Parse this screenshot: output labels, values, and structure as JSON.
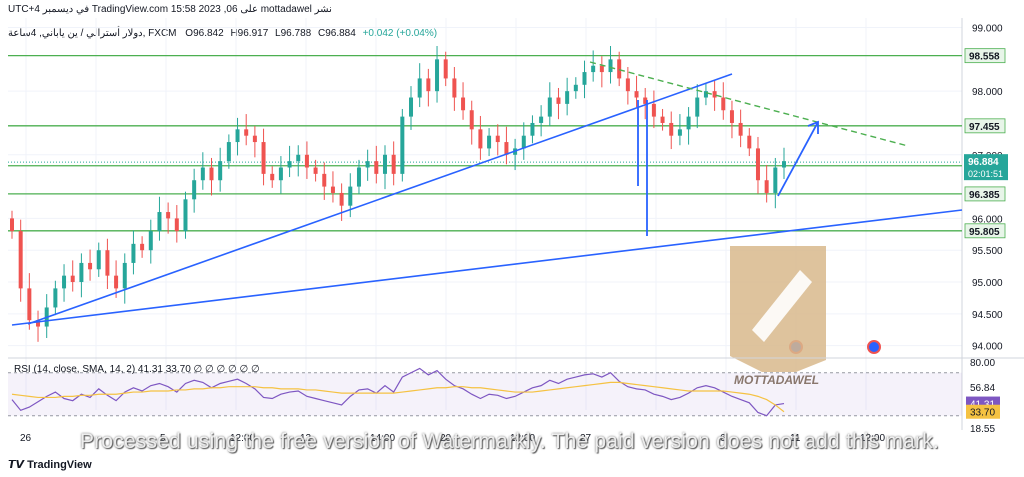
{
  "header": {
    "publish_line": "نشر mottadawel على TradingView.com 15:58 2023 ,06 في ديسمبر UTC+4",
    "symbol_line": "دولار أسترالي / ين ياباني, 4ساعة, FXCM",
    "ohlc": {
      "o": "O96.842",
      "h": "H96.917",
      "l": "L96.788",
      "c": "C96.884",
      "chg": "+0.042 (+0.04%)"
    }
  },
  "watermark_text": "Processed using the free version of Watermarkly. The paid version does not add this mark.",
  "logo_text": "MOTTADAWEL",
  "tv_brand": "TradingView",
  "colors": {
    "up": "#26a69a",
    "down": "#ef5350",
    "level": "#4caf50",
    "trend": "#2962ff",
    "rsi": "#7e57c2",
    "rsi_ma": "#f5c242"
  },
  "chart_data": {
    "type": "candlestick",
    "ylim": [
      93.9,
      99.15
    ],
    "y_ticks": [
      "99.000",
      "98.000",
      "97.000",
      "96.000",
      "95.500",
      "95.000",
      "94.500",
      "94.000"
    ],
    "y_tick_values": [
      99.0,
      98.0,
      97.0,
      96.0,
      95.5,
      95.0,
      94.5,
      94.0
    ],
    "x_labels": [
      "26",
      "",
      "5",
      "12:00",
      "12",
      "14:00",
      "20",
      "12:00",
      "27",
      "",
      "6",
      "11",
      "12:00"
    ],
    "horizontal_levels": [
      {
        "label": "98.558",
        "value": 98.558
      },
      {
        "label": "97.455",
        "value": 97.455
      },
      {
        "label": "96.827",
        "value": 96.827
      },
      {
        "label": "96.385",
        "value": 96.385
      },
      {
        "label": "95.805",
        "value": 95.805
      }
    ],
    "last_price": {
      "label": "96.884",
      "value": 96.884,
      "countdown": "02:01:51"
    },
    "closes": [
      95.8,
      94.9,
      94.4,
      94.3,
      94.6,
      94.9,
      95.1,
      95.0,
      95.3,
      95.2,
      95.5,
      95.1,
      94.9,
      95.3,
      95.6,
      95.5,
      95.8,
      96.1,
      96.0,
      95.8,
      96.3,
      96.6,
      96.8,
      96.6,
      96.9,
      97.2,
      97.4,
      97.3,
      97.2,
      96.7,
      96.6,
      96.8,
      96.9,
      97.0,
      96.8,
      96.7,
      96.5,
      96.4,
      96.2,
      96.5,
      96.8,
      96.9,
      96.7,
      97.0,
      96.7,
      97.6,
      97.9,
      98.2,
      98.0,
      98.5,
      98.2,
      97.9,
      97.7,
      97.4,
      97.1,
      97.3,
      97.2,
      97.0,
      97.1,
      97.3,
      97.5,
      97.6,
      97.9,
      97.8,
      98.0,
      98.1,
      98.3,
      98.4,
      98.3,
      98.5,
      98.2,
      98.0,
      97.9,
      97.8,
      97.6,
      97.5,
      97.3,
      97.4,
      97.6,
      97.9,
      98.0,
      97.9,
      97.7,
      97.5,
      97.3,
      97.1,
      96.6,
      96.4,
      96.8,
      96.9
    ],
    "rsi": {
      "label": "RSI (14, close, SMA, 14, 2)",
      "values_text": "41.31  33.70  ∅ ∅ ∅ ∅ ∅ ∅",
      "ylim": [
        18.55,
        80.0
      ],
      "ticks": [
        "80.00",
        "56.84",
        "41.31",
        "33.70",
        "18.55"
      ],
      "tick_values": [
        80.0,
        56.84,
        41.31,
        33.7,
        18.55
      ],
      "rsi_last": 41.31,
      "ma_last": 33.7,
      "series": [
        45,
        35,
        38,
        43,
        48,
        52,
        46,
        44,
        50,
        47,
        55,
        49,
        44,
        52,
        56,
        53,
        58,
        60,
        57,
        52,
        60,
        63,
        61,
        56,
        60,
        62,
        64,
        60,
        55,
        47,
        46,
        50,
        52,
        53,
        48,
        46,
        44,
        42,
        40,
        48,
        54,
        55,
        51,
        58,
        52,
        66,
        70,
        74,
        68,
        72,
        64,
        58,
        55,
        50,
        46,
        50,
        49,
        46,
        48,
        52,
        56,
        58,
        63,
        60,
        64,
        66,
        68,
        69,
        66,
        70,
        62,
        57,
        55,
        54,
        50,
        48,
        45,
        47,
        51,
        56,
        58,
        56,
        52,
        48,
        45,
        42,
        33,
        30,
        40,
        41.31
      ],
      "ma": [
        50,
        49,
        48,
        47,
        47,
        47,
        48,
        48,
        49,
        49,
        50,
        50,
        50,
        51,
        52,
        52,
        53,
        53,
        53,
        54,
        54,
        55,
        55,
        56,
        56,
        57,
        57,
        57,
        57,
        56,
        56,
        55,
        55,
        55,
        54,
        54,
        53,
        52,
        51,
        51,
        51,
        51,
        51,
        51,
        51,
        52,
        53,
        54,
        55,
        56,
        56,
        57,
        57,
        56,
        56,
        55,
        54,
        53,
        52,
        52,
        52,
        53,
        54,
        55,
        56,
        57,
        58,
        59,
        60,
        61,
        61,
        60,
        59,
        58,
        57,
        56,
        55,
        54,
        53,
        53,
        53,
        53,
        53,
        52,
        51,
        50,
        48,
        45,
        40,
        33.7
      ]
    }
  }
}
